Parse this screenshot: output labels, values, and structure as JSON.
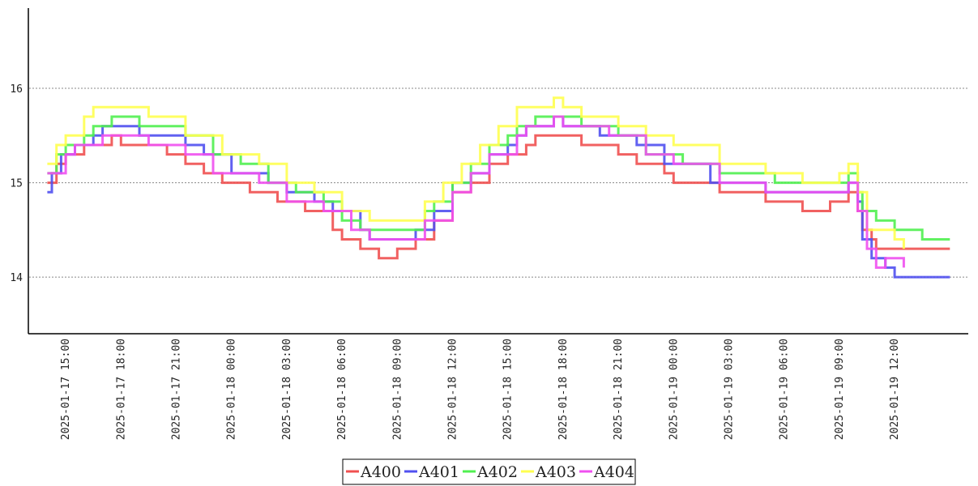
{
  "chart_data": {
    "type": "line",
    "title": "",
    "xlabel": "",
    "ylabel": "",
    "ylim": [
      13.4,
      16.85
    ],
    "yticks": [
      14,
      15,
      16
    ],
    "xlim": [
      "2025-01-17 13:30",
      "2025-01-19 16:00"
    ],
    "xticks": [
      "2025-01-17 15:00",
      "2025-01-17 18:00",
      "2025-01-17 21:00",
      "2025-01-18 00:00",
      "2025-01-18 03:00",
      "2025-01-18 06:00",
      "2025-01-18 09:00",
      "2025-01-18 12:00",
      "2025-01-18 15:00",
      "2025-01-18 18:00",
      "2025-01-18 21:00",
      "2025-01-19 00:00",
      "2025-01-19 03:00",
      "2025-01-19 06:00",
      "2025-01-19 09:00",
      "2025-01-19 12:00"
    ],
    "grid": "horizontal dotted",
    "legend_position": "bottom-center",
    "series": [
      {
        "name": "A400",
        "color": "#f05050",
        "points": [
          [
            "2025-01-17 14:00",
            15.0
          ],
          [
            "2025-01-17 14:30",
            15.2
          ],
          [
            "2025-01-17 15:00",
            15.3
          ],
          [
            "2025-01-17 16:00",
            15.4
          ],
          [
            "2025-01-17 17:30",
            15.5
          ],
          [
            "2025-01-17 18:00",
            15.4
          ],
          [
            "2025-01-17 20:30",
            15.3
          ],
          [
            "2025-01-17 21:30",
            15.2
          ],
          [
            "2025-01-17 22:30",
            15.1
          ],
          [
            "2025-01-17 23:30",
            15.0
          ],
          [
            "2025-01-18 01:00",
            14.9
          ],
          [
            "2025-01-18 02:30",
            14.8
          ],
          [
            "2025-01-18 04:00",
            14.7
          ],
          [
            "2025-01-18 05:30",
            14.5
          ],
          [
            "2025-01-18 06:00",
            14.4
          ],
          [
            "2025-01-18 07:00",
            14.3
          ],
          [
            "2025-01-18 08:00",
            14.2
          ],
          [
            "2025-01-18 09:00",
            14.3
          ],
          [
            "2025-01-18 10:00",
            14.4
          ],
          [
            "2025-01-18 11:00",
            14.6
          ],
          [
            "2025-01-18 12:00",
            14.9
          ],
          [
            "2025-01-18 13:00",
            15.0
          ],
          [
            "2025-01-18 14:00",
            15.2
          ],
          [
            "2025-01-18 15:00",
            15.3
          ],
          [
            "2025-01-18 16:00",
            15.4
          ],
          [
            "2025-01-18 16:30",
            15.5
          ],
          [
            "2025-01-18 18:00",
            15.5
          ],
          [
            "2025-01-18 19:00",
            15.4
          ],
          [
            "2025-01-18 21:00",
            15.3
          ],
          [
            "2025-01-18 22:00",
            15.2
          ],
          [
            "2025-01-18 23:30",
            15.1
          ],
          [
            "2025-01-19 00:00",
            15.0
          ],
          [
            "2025-01-19 02:30",
            14.9
          ],
          [
            "2025-01-19 05:00",
            14.8
          ],
          [
            "2025-01-19 07:00",
            14.7
          ],
          [
            "2025-01-19 08:30",
            14.8
          ],
          [
            "2025-01-19 09:30",
            14.9
          ],
          [
            "2025-01-19 10:00",
            14.7
          ],
          [
            "2025-01-19 10:15",
            14.5
          ],
          [
            "2025-01-19 10:45",
            14.4
          ],
          [
            "2025-01-19 11:00",
            14.3
          ],
          [
            "2025-01-19 15:00",
            14.3
          ]
        ]
      },
      {
        "name": "A401",
        "color": "#5050f0",
        "points": [
          [
            "2025-01-17 14:00",
            14.9
          ],
          [
            "2025-01-17 14:15",
            15.1
          ],
          [
            "2025-01-17 14:45",
            15.3
          ],
          [
            "2025-01-17 15:30",
            15.4
          ],
          [
            "2025-01-17 16:30",
            15.5
          ],
          [
            "2025-01-17 17:00",
            15.6
          ],
          [
            "2025-01-17 19:00",
            15.5
          ],
          [
            "2025-01-17 21:30",
            15.4
          ],
          [
            "2025-01-17 22:30",
            15.3
          ],
          [
            "2025-01-18 00:00",
            15.1
          ],
          [
            "2025-01-18 02:00",
            15.0
          ],
          [
            "2025-01-18 03:00",
            14.9
          ],
          [
            "2025-01-18 04:30",
            14.8
          ],
          [
            "2025-01-18 05:30",
            14.7
          ],
          [
            "2025-01-18 07:00",
            14.5
          ],
          [
            "2025-01-18 07:30",
            14.4
          ],
          [
            "2025-01-18 09:00",
            14.4
          ],
          [
            "2025-01-18 10:00",
            14.5
          ],
          [
            "2025-01-18 11:00",
            14.7
          ],
          [
            "2025-01-18 12:00",
            15.0
          ],
          [
            "2025-01-18 13:00",
            15.1
          ],
          [
            "2025-01-18 14:00",
            15.3
          ],
          [
            "2025-01-18 15:00",
            15.4
          ],
          [
            "2025-01-18 15:30",
            15.5
          ],
          [
            "2025-01-18 16:00",
            15.6
          ],
          [
            "2025-01-18 17:30",
            15.7
          ],
          [
            "2025-01-18 18:00",
            15.6
          ],
          [
            "2025-01-18 20:00",
            15.5
          ],
          [
            "2025-01-18 22:00",
            15.4
          ],
          [
            "2025-01-18 23:30",
            15.2
          ],
          [
            "2025-01-19 02:00",
            15.0
          ],
          [
            "2025-01-19 05:00",
            14.9
          ],
          [
            "2025-01-19 09:30",
            15.0
          ],
          [
            "2025-01-19 10:00",
            14.8
          ],
          [
            "2025-01-19 10:15",
            14.4
          ],
          [
            "2025-01-19 10:45",
            14.2
          ],
          [
            "2025-01-19 11:30",
            14.1
          ],
          [
            "2025-01-19 12:00",
            14.0
          ],
          [
            "2025-01-19 15:00",
            14.0
          ]
        ]
      },
      {
        "name": "A402",
        "color": "#50f050",
        "points": [
          [
            "2025-01-17 14:00",
            15.1
          ],
          [
            "2025-01-17 14:30",
            15.3
          ],
          [
            "2025-01-17 15:00",
            15.4
          ],
          [
            "2025-01-17 16:00",
            15.5
          ],
          [
            "2025-01-17 16:30",
            15.6
          ],
          [
            "2025-01-17 17:30",
            15.7
          ],
          [
            "2025-01-17 19:00",
            15.6
          ],
          [
            "2025-01-17 21:30",
            15.5
          ],
          [
            "2025-01-17 23:00",
            15.3
          ],
          [
            "2025-01-18 00:30",
            15.2
          ],
          [
            "2025-01-18 02:00",
            15.0
          ],
          [
            "2025-01-18 03:30",
            14.9
          ],
          [
            "2025-01-18 05:00",
            14.8
          ],
          [
            "2025-01-18 06:00",
            14.6
          ],
          [
            "2025-01-18 07:00",
            14.5
          ],
          [
            "2025-01-18 09:30",
            14.5
          ],
          [
            "2025-01-18 10:30",
            14.7
          ],
          [
            "2025-01-18 11:00",
            14.8
          ],
          [
            "2025-01-18 12:00",
            15.0
          ],
          [
            "2025-01-18 13:00",
            15.2
          ],
          [
            "2025-01-18 14:00",
            15.4
          ],
          [
            "2025-01-18 15:00",
            15.5
          ],
          [
            "2025-01-18 15:30",
            15.6
          ],
          [
            "2025-01-18 16:30",
            15.7
          ],
          [
            "2025-01-18 18:00",
            15.7
          ],
          [
            "2025-01-18 19:00",
            15.6
          ],
          [
            "2025-01-18 21:00",
            15.5
          ],
          [
            "2025-01-18 22:30",
            15.3
          ],
          [
            "2025-01-19 00:30",
            15.2
          ],
          [
            "2025-01-19 02:30",
            15.1
          ],
          [
            "2025-01-19 05:30",
            15.0
          ],
          [
            "2025-01-19 08:00",
            15.0
          ],
          [
            "2025-01-19 09:30",
            15.1
          ],
          [
            "2025-01-19 10:00",
            14.9
          ],
          [
            "2025-01-19 10:15",
            14.7
          ],
          [
            "2025-01-19 11:00",
            14.6
          ],
          [
            "2025-01-19 12:00",
            14.5
          ],
          [
            "2025-01-19 13:30",
            14.4
          ],
          [
            "2025-01-19 15:00",
            14.4
          ]
        ]
      },
      {
        "name": "A403",
        "color": "#ffff50",
        "points": [
          [
            "2025-01-17 14:00",
            15.2
          ],
          [
            "2025-01-17 14:30",
            15.4
          ],
          [
            "2025-01-17 15:00",
            15.5
          ],
          [
            "2025-01-17 16:00",
            15.7
          ],
          [
            "2025-01-17 16:30",
            15.8
          ],
          [
            "2025-01-17 18:00",
            15.8
          ],
          [
            "2025-01-17 19:30",
            15.7
          ],
          [
            "2025-01-17 21:30",
            15.5
          ],
          [
            "2025-01-17 23:30",
            15.3
          ],
          [
            "2025-01-18 01:30",
            15.2
          ],
          [
            "2025-01-18 03:00",
            15.0
          ],
          [
            "2025-01-18 04:30",
            14.9
          ],
          [
            "2025-01-18 06:00",
            14.7
          ],
          [
            "2025-01-18 07:30",
            14.6
          ],
          [
            "2025-01-18 09:30",
            14.6
          ],
          [
            "2025-01-18 10:30",
            14.8
          ],
          [
            "2025-01-18 11:30",
            15.0
          ],
          [
            "2025-01-18 12:30",
            15.2
          ],
          [
            "2025-01-18 13:30",
            15.4
          ],
          [
            "2025-01-18 14:30",
            15.6
          ],
          [
            "2025-01-18 15:30",
            15.8
          ],
          [
            "2025-01-18 17:00",
            15.8
          ],
          [
            "2025-01-18 17:30",
            15.9
          ],
          [
            "2025-01-18 18:00",
            15.8
          ],
          [
            "2025-01-18 19:00",
            15.7
          ],
          [
            "2025-01-18 21:00",
            15.6
          ],
          [
            "2025-01-18 22:30",
            15.5
          ],
          [
            "2025-01-19 00:00",
            15.4
          ],
          [
            "2025-01-19 02:30",
            15.2
          ],
          [
            "2025-01-19 05:00",
            15.1
          ],
          [
            "2025-01-19 07:00",
            15.0
          ],
          [
            "2025-01-19 09:00",
            15.1
          ],
          [
            "2025-01-19 09:30",
            15.2
          ],
          [
            "2025-01-19 10:00",
            14.9
          ],
          [
            "2025-01-19 10:30",
            14.5
          ],
          [
            "2025-01-19 12:00",
            14.4
          ],
          [
            "2025-01-19 12:30",
            14.3
          ]
        ]
      },
      {
        "name": "A404",
        "color": "#f050f0",
        "points": [
          [
            "2025-01-17 14:00",
            15.1
          ],
          [
            "2025-01-17 15:00",
            15.3
          ],
          [
            "2025-01-17 15:30",
            15.4
          ],
          [
            "2025-01-17 17:00",
            15.5
          ],
          [
            "2025-01-17 19:30",
            15.4
          ],
          [
            "2025-01-17 21:30",
            15.3
          ],
          [
            "2025-01-17 23:00",
            15.1
          ],
          [
            "2025-01-18 01:30",
            15.0
          ],
          [
            "2025-01-18 03:00",
            14.8
          ],
          [
            "2025-01-18 05:00",
            14.7
          ],
          [
            "2025-01-18 06:30",
            14.5
          ],
          [
            "2025-01-18 07:30",
            14.4
          ],
          [
            "2025-01-18 09:30",
            14.4
          ],
          [
            "2025-01-18 10:30",
            14.6
          ],
          [
            "2025-01-18 12:00",
            14.9
          ],
          [
            "2025-01-18 13:00",
            15.1
          ],
          [
            "2025-01-18 14:00",
            15.3
          ],
          [
            "2025-01-18 15:30",
            15.5
          ],
          [
            "2025-01-18 16:00",
            15.6
          ],
          [
            "2025-01-18 17:30",
            15.7
          ],
          [
            "2025-01-18 18:00",
            15.6
          ],
          [
            "2025-01-18 20:30",
            15.5
          ],
          [
            "2025-01-18 22:30",
            15.3
          ],
          [
            "2025-01-19 00:00",
            15.2
          ],
          [
            "2025-01-19 02:30",
            15.0
          ],
          [
            "2025-01-19 05:00",
            14.9
          ],
          [
            "2025-01-19 08:00",
            14.9
          ],
          [
            "2025-01-19 09:30",
            15.0
          ],
          [
            "2025-01-19 10:00",
            14.7
          ],
          [
            "2025-01-19 10:30",
            14.3
          ],
          [
            "2025-01-19 11:00",
            14.1
          ],
          [
            "2025-01-19 11:30",
            14.2
          ],
          [
            "2025-01-19 12:30",
            14.1
          ]
        ]
      }
    ]
  }
}
